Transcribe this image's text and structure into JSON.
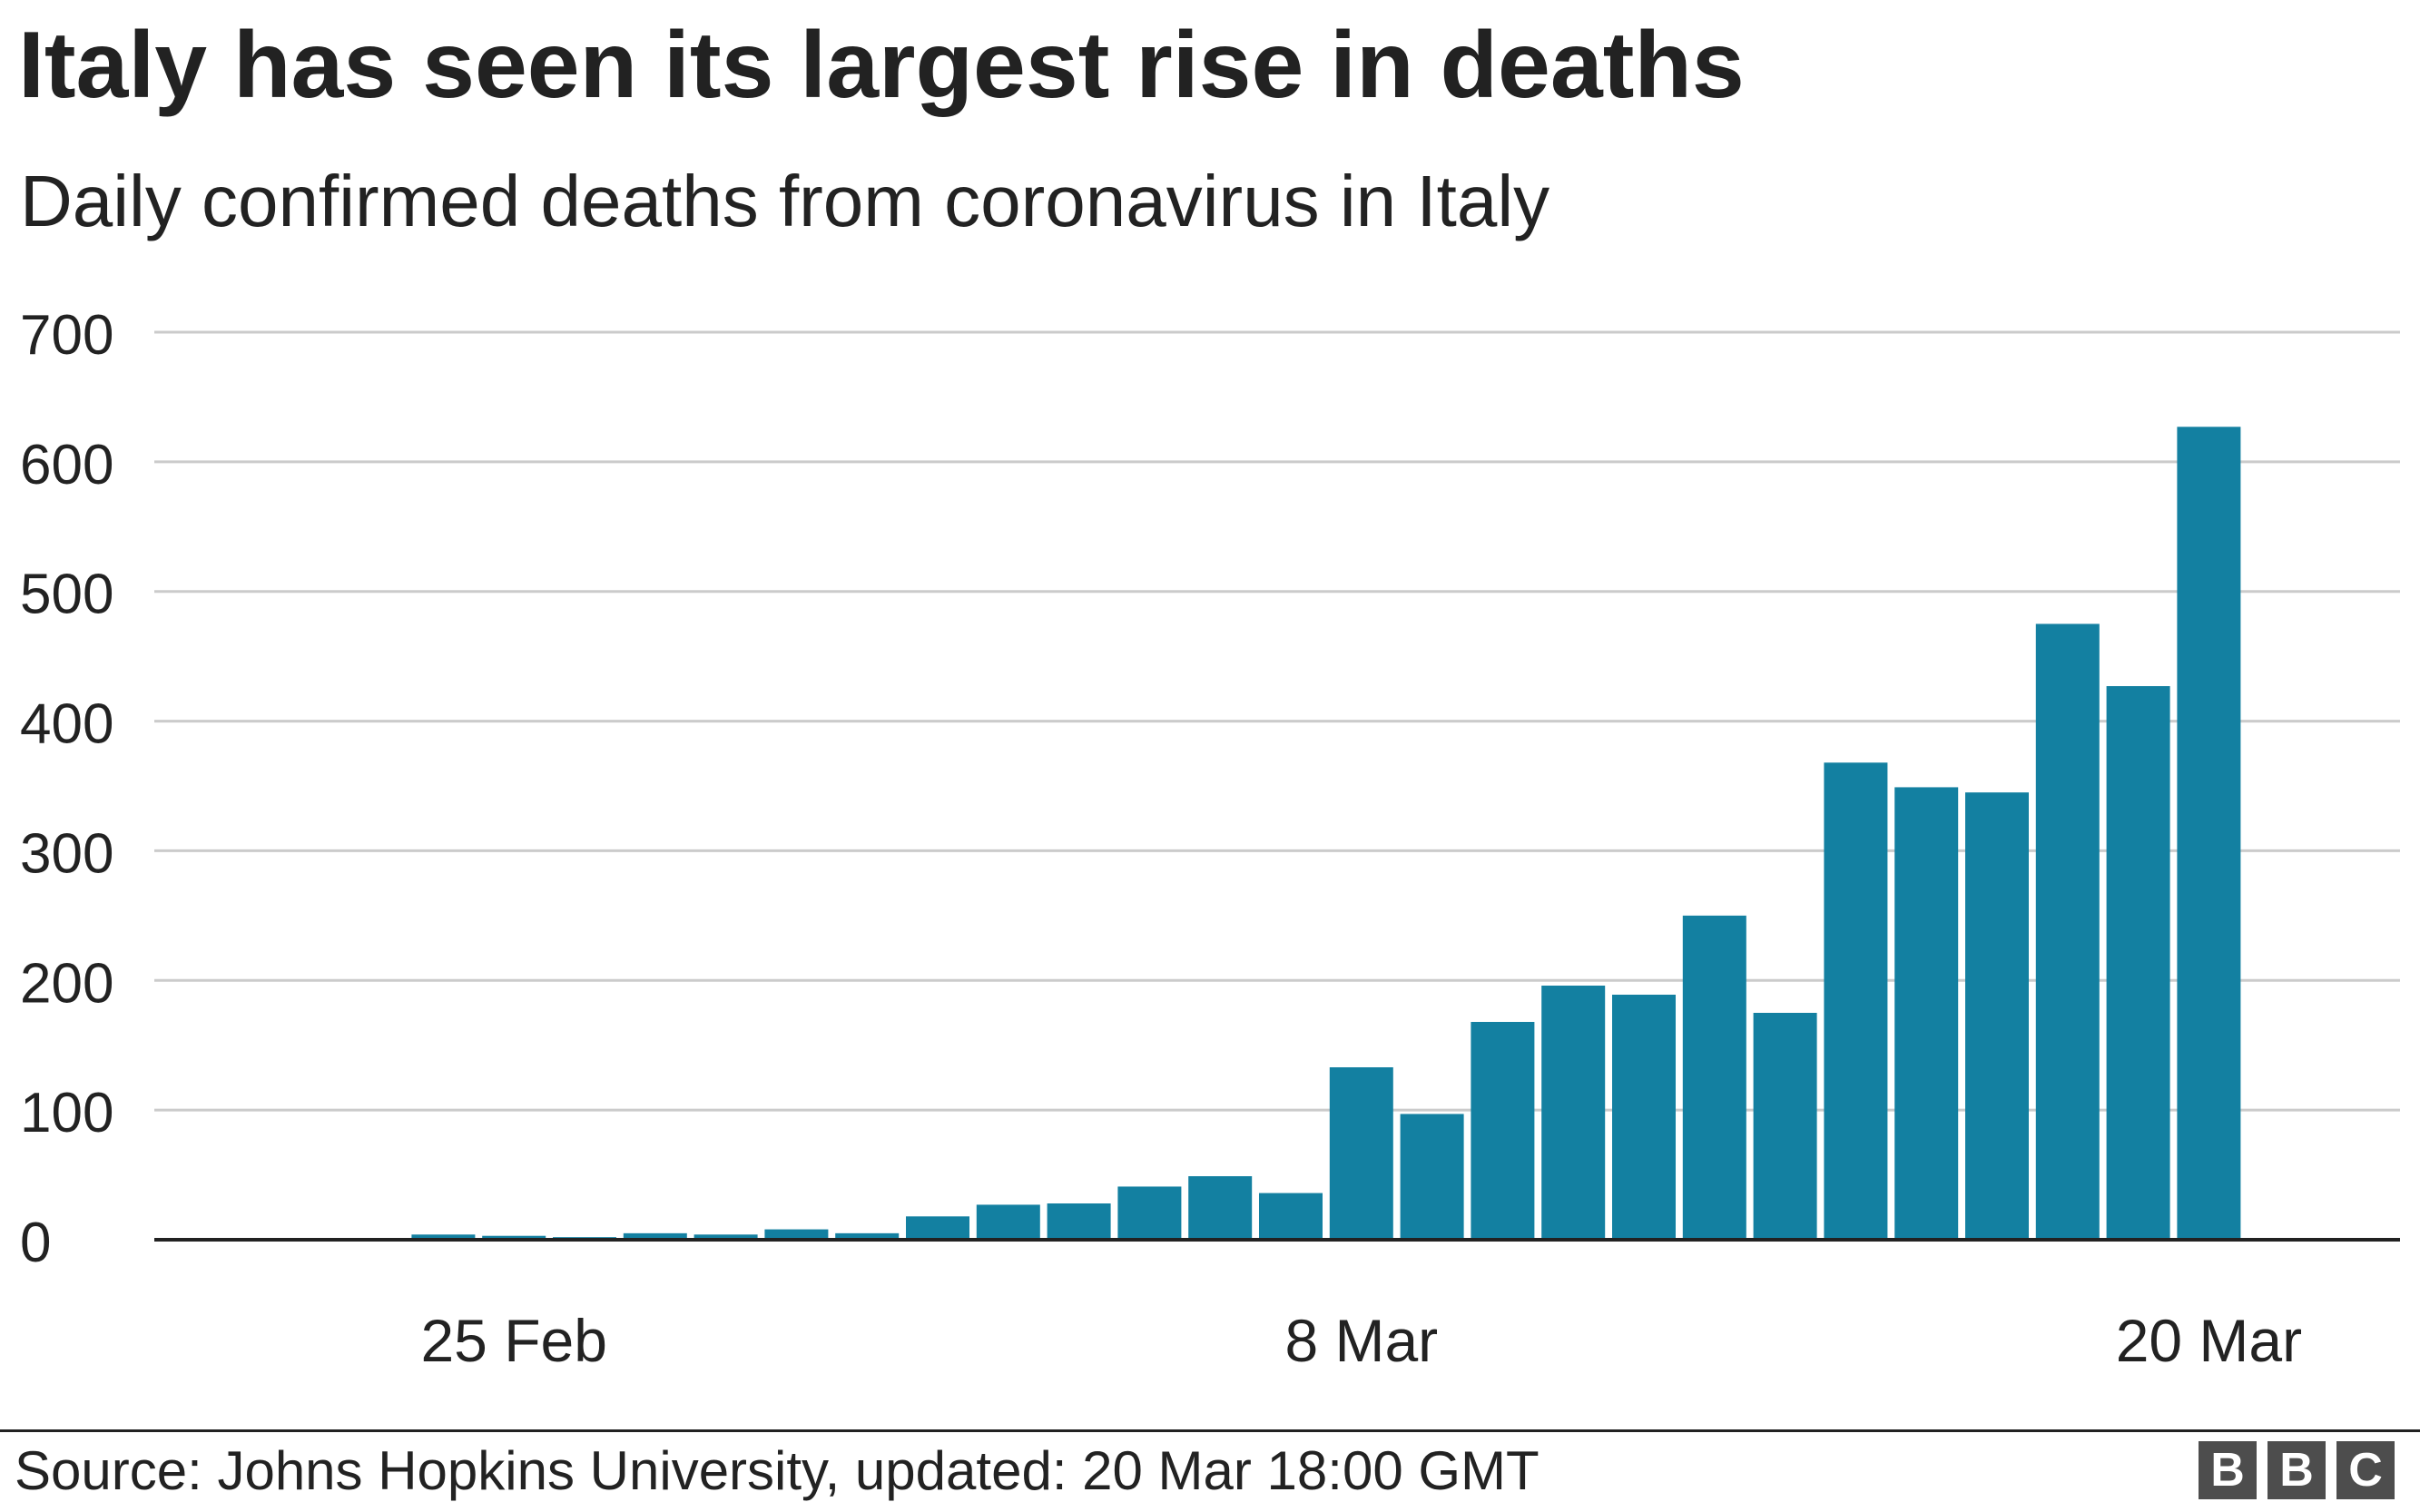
{
  "title": "Italy has seen its largest rise in deaths",
  "subtitle": "Daily confirmed deaths from coronavirus in Italy",
  "source": "Source: Johns Hopkins University, updated:  20 Mar 18:00 GMT",
  "logo": {
    "letters": [
      "B",
      "B",
      "C"
    ]
  },
  "colors": {
    "bar": "#1380a1",
    "grid": "#cbcbcb",
    "axis": "#222222",
    "text": "#222222"
  },
  "chart_data": {
    "type": "bar",
    "title": "Italy has seen its largest rise in deaths",
    "subtitle": "Daily confirmed deaths from coronavirus in Italy",
    "xlabel": "",
    "ylabel": "",
    "ylim": [
      0,
      700
    ],
    "yticks": [
      0,
      100,
      200,
      300,
      400,
      500,
      600,
      700
    ],
    "xtick_labels": [
      {
        "label": "25 Feb",
        "category": "25 Feb"
      },
      {
        "label": "8 Mar",
        "category": "8 Mar"
      },
      {
        "label": "20 Mar",
        "category": "20 Mar"
      }
    ],
    "grid": true,
    "categories": [
      "21 Feb",
      "22 Feb",
      "23 Feb",
      "24 Feb",
      "25 Feb",
      "26 Feb",
      "27 Feb",
      "28 Feb",
      "29 Feb",
      "1 Mar",
      "2 Mar",
      "3 Mar",
      "4 Mar",
      "5 Mar",
      "6 Mar",
      "7 Mar",
      "8 Mar",
      "9 Mar",
      "10 Mar",
      "11 Mar",
      "12 Mar",
      "13 Mar",
      "14 Mar",
      "15 Mar",
      "16 Mar",
      "17 Mar",
      "18 Mar",
      "19 Mar",
      "20 Mar"
    ],
    "values": [
      1,
      1,
      1,
      4,
      3,
      2,
      5,
      4,
      8,
      5,
      18,
      27,
      28,
      41,
      49,
      36,
      133,
      97,
      168,
      196,
      189,
      250,
      175,
      368,
      349,
      345,
      475,
      427,
      627
    ]
  }
}
